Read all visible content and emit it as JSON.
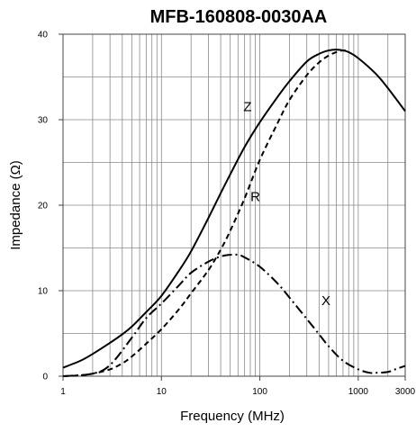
{
  "chart_data": {
    "type": "line",
    "title": "MFB-160808-0030AA",
    "xlabel": "Frequency (MHz)",
    "ylabel": "Impedance (Ω)",
    "x_scale": "log",
    "xlim": [
      1,
      3000
    ],
    "ylim": [
      0,
      40
    ],
    "grid": true,
    "x_ticks": [
      1,
      10,
      100,
      1000,
      3000
    ],
    "x_tick_labels": [
      "1",
      "10",
      "100",
      "1000",
      "3000"
    ],
    "y_ticks": [
      0,
      10,
      20,
      30,
      40
    ],
    "y_tick_labels": [
      "0",
      "10",
      "20",
      "30",
      "40"
    ],
    "series": [
      {
        "name": "Z",
        "style": "solid",
        "color": "#000000",
        "x": [
          1,
          1.5,
          2,
          3,
          4,
          5,
          7,
          10,
          15,
          20,
          30,
          40,
          50,
          70,
          100,
          150,
          200,
          300,
          400,
          500,
          600,
          700,
          800,
          1000,
          1500,
          2000,
          3000
        ],
        "y": [
          1.0,
          1.8,
          2.6,
          3.9,
          4.9,
          5.8,
          7.5,
          9.4,
          12.3,
          14.6,
          18.5,
          21.4,
          23.6,
          26.8,
          29.7,
          32.6,
          34.5,
          36.8,
          37.7,
          38.1,
          38.2,
          38.1,
          37.9,
          37.2,
          35.4,
          33.7,
          31.0
        ]
      },
      {
        "name": "R",
        "style": "dashed",
        "color": "#000000",
        "x": [
          1,
          1.5,
          2,
          3,
          4,
          5,
          7,
          10,
          15,
          20,
          30,
          40,
          50,
          70,
          100,
          150,
          200,
          300,
          400,
          500,
          600,
          700,
          800
        ],
        "y": [
          0.0,
          0.1,
          0.3,
          0.8,
          1.5,
          2.3,
          3.8,
          5.5,
          7.8,
          9.7,
          12.4,
          14.8,
          17.0,
          20.8,
          25.3,
          29.5,
          32.3,
          35.2,
          36.7,
          37.5,
          37.9,
          38.1,
          38.0
        ]
      },
      {
        "name": "X",
        "style": "dashdot",
        "color": "#000000",
        "x": [
          1,
          2,
          3,
          5,
          7,
          10,
          15,
          20,
          30,
          40,
          50,
          60,
          70,
          100,
          150,
          200,
          300,
          400,
          500,
          700,
          1000,
          1300,
          1500,
          2000,
          2500,
          3000
        ],
        "y": [
          0.0,
          0.3,
          1.3,
          4.5,
          6.8,
          8.5,
          10.6,
          12.1,
          13.4,
          14.0,
          14.2,
          14.2,
          13.9,
          12.8,
          10.9,
          9.2,
          6.7,
          4.9,
          3.5,
          1.8,
          0.8,
          0.4,
          0.4,
          0.5,
          0.9,
          1.2
        ]
      }
    ]
  }
}
